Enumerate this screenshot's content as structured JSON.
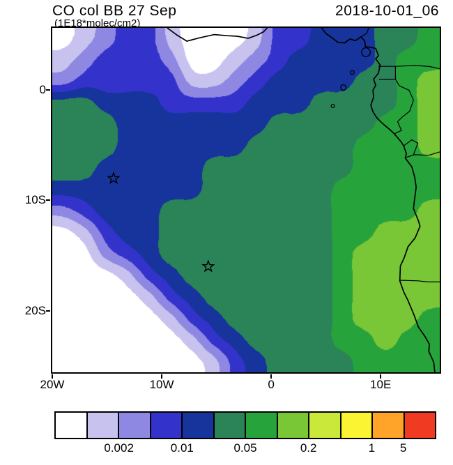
{
  "chart_data": {
    "type": "heatmap",
    "title": "CO col BB 27 Sep",
    "subtitle_units": "(1E18*molec/cm2)",
    "timestamp": "2018-10-01_06",
    "x_axis": {
      "ticks": [
        {
          "label": "20W",
          "lon": -20
        },
        {
          "label": "10W",
          "lon": -10
        },
        {
          "label": "0",
          "lon": 0
        },
        {
          "label": "10E",
          "lon": 10
        }
      ]
    },
    "y_axis": {
      "ticks": [
        {
          "label": "0",
          "lat": 0
        },
        {
          "label": "10S",
          "lat": -10
        },
        {
          "label": "20S",
          "lat": -20
        }
      ]
    },
    "lon_range": [
      -20,
      15.4
    ],
    "lat_range": [
      5.66,
      -25.6
    ],
    "levels": [
      0.001,
      0.002,
      0.005,
      0.01,
      0.02,
      0.05,
      0.1,
      0.2,
      0.5,
      1,
      5
    ],
    "palette": [
      "#ffffff",
      "#c8c2ee",
      "#8f88e3",
      "#3333cc",
      "#16349c",
      "#2b8458",
      "#27a33c",
      "#79c636",
      "#c9e83a",
      "#fbf432",
      "#ffa329",
      "#f03b22"
    ],
    "colorbar_labels": [
      {
        "text": "0.002",
        "boundary": 2
      },
      {
        "text": "0.01",
        "boundary": 4
      },
      {
        "text": "0.05",
        "boundary": 6
      },
      {
        "text": "0.2",
        "boundary": 8
      },
      {
        "text": "1",
        "boundary": 10
      },
      {
        "text": "5",
        "boundary": 11
      }
    ],
    "grid": {
      "ncols": 18,
      "nrows": 16,
      "values": [
        [
          0.0005,
          0.0015,
          0.003,
          0.007,
          0.007,
          0.0015,
          0.0005,
          0.0005,
          0.0005,
          0.0015,
          0.007,
          0.007,
          0.015,
          0.015,
          0.015,
          0.03,
          0.03,
          0.07
        ],
        [
          0.0015,
          0.003,
          0.007,
          0.007,
          0.007,
          0.003,
          0.0005,
          0.0005,
          0.0015,
          0.003,
          0.007,
          0.015,
          0.015,
          0.015,
          0.015,
          0.03,
          0.07,
          0.07
        ],
        [
          0.003,
          0.007,
          0.007,
          0.007,
          0.007,
          0.007,
          0.0015,
          0.0015,
          0.003,
          0.007,
          0.015,
          0.015,
          0.015,
          0.015,
          0.03,
          0.03,
          0.07,
          0.15
        ],
        [
          0.03,
          0.03,
          0.015,
          0.015,
          0.015,
          0.007,
          0.007,
          0.007,
          0.007,
          0.015,
          0.015,
          0.015,
          0.03,
          0.03,
          0.03,
          0.03,
          0.07,
          0.15
        ],
        [
          0.03,
          0.03,
          0.03,
          0.015,
          0.015,
          0.015,
          0.015,
          0.015,
          0.015,
          0.015,
          0.03,
          0.03,
          0.03,
          0.03,
          0.03,
          0.07,
          0.07,
          0.15
        ],
        [
          0.03,
          0.03,
          0.03,
          0.015,
          0.015,
          0.015,
          0.015,
          0.015,
          0.015,
          0.03,
          0.03,
          0.03,
          0.03,
          0.03,
          0.07,
          0.07,
          0.07,
          0.15
        ],
        [
          0.03,
          0.03,
          0.015,
          0.015,
          0.015,
          0.015,
          0.015,
          0.03,
          0.03,
          0.03,
          0.03,
          0.03,
          0.03,
          0.03,
          0.07,
          0.07,
          0.07,
          0.07
        ],
        [
          0.015,
          0.015,
          0.015,
          0.015,
          0.015,
          0.015,
          0.015,
          0.03,
          0.03,
          0.03,
          0.03,
          0.03,
          0.03,
          0.07,
          0.07,
          0.07,
          0.07,
          0.07
        ],
        [
          0.003,
          0.007,
          0.015,
          0.015,
          0.015,
          0.03,
          0.03,
          0.03,
          0.03,
          0.03,
          0.03,
          0.03,
          0.03,
          0.07,
          0.07,
          0.07,
          0.07,
          0.15
        ],
        [
          0.0005,
          0.0015,
          0.007,
          0.015,
          0.015,
          0.03,
          0.03,
          0.03,
          0.03,
          0.03,
          0.03,
          0.03,
          0.03,
          0.07,
          0.07,
          0.15,
          0.15,
          0.15
        ],
        [
          0.0005,
          0.0005,
          0.003,
          0.007,
          0.015,
          0.03,
          0.03,
          0.03,
          0.03,
          0.03,
          0.03,
          0.03,
          0.03,
          0.07,
          0.15,
          0.15,
          0.15,
          0.15
        ],
        [
          0.0005,
          0.0005,
          0.0005,
          0.0015,
          0.007,
          0.015,
          0.03,
          0.03,
          0.03,
          0.03,
          0.03,
          0.03,
          0.03,
          0.07,
          0.15,
          0.15,
          0.15,
          0.15
        ],
        [
          0.0005,
          0.0005,
          0.0005,
          0.0005,
          0.0015,
          0.007,
          0.015,
          0.03,
          0.03,
          0.03,
          0.03,
          0.03,
          0.03,
          0.07,
          0.15,
          0.15,
          0.15,
          0.15
        ],
        [
          0.0005,
          0.0005,
          0.0005,
          0.0005,
          0.0005,
          0.0015,
          0.007,
          0.015,
          0.03,
          0.03,
          0.03,
          0.03,
          0.03,
          0.07,
          0.15,
          0.15,
          0.15,
          0.07
        ],
        [
          0.0005,
          0.0005,
          0.0005,
          0.0005,
          0.0005,
          0.0005,
          0.0015,
          0.007,
          0.015,
          0.03,
          0.03,
          0.03,
          0.03,
          0.07,
          0.07,
          0.15,
          0.07,
          0.07
        ],
        [
          0.0005,
          0.0005,
          0.0005,
          0.0005,
          0.0005,
          0.0005,
          0.0005,
          0.0015,
          0.007,
          0.015,
          0.03,
          0.03,
          0.03,
          0.03,
          0.07,
          0.07,
          0.07,
          0.07
        ]
      ]
    },
    "markers": [
      {
        "lon": -14.4,
        "lat": -8.0
      },
      {
        "lon": -5.75,
        "lat": -16.0
      }
    ],
    "map": {
      "coastlines": [
        [
          [
            -9.5,
            5.66
          ],
          [
            -8.6,
            5.0
          ],
          [
            -7.7,
            4.45
          ],
          [
            -6.6,
            4.75
          ],
          [
            -5.2,
            5.05
          ],
          [
            -4.0,
            4.95
          ],
          [
            -3.1,
            4.9
          ],
          [
            -2.1,
            4.72
          ],
          [
            -1.3,
            5.0
          ],
          [
            -0.7,
            5.3
          ],
          [
            -0.35,
            5.66
          ]
        ],
        [
          [
            4.6,
            5.66
          ],
          [
            5.0,
            5.15
          ],
          [
            5.5,
            4.8
          ],
          [
            6.1,
            4.35
          ],
          [
            6.7,
            4.3
          ],
          [
            7.2,
            4.65
          ],
          [
            7.7,
            4.5
          ],
          [
            8.2,
            4.85
          ],
          [
            8.55,
            4.45
          ],
          [
            8.6,
            3.95
          ],
          [
            9.1,
            3.9
          ],
          [
            9.55,
            3.8
          ],
          [
            9.8,
            3.15
          ],
          [
            9.55,
            2.85
          ],
          [
            9.95,
            2.3
          ],
          [
            9.8,
            1.55
          ],
          [
            9.35,
            1.0
          ],
          [
            9.55,
            0.45
          ],
          [
            9.3,
            0.0
          ],
          [
            9.35,
            -0.65
          ],
          [
            9.1,
            -1.35
          ],
          [
            9.3,
            -1.95
          ],
          [
            9.65,
            -2.5
          ],
          [
            10.1,
            -2.95
          ],
          [
            10.75,
            -3.5
          ],
          [
            11.25,
            -3.95
          ],
          [
            11.85,
            -4.65
          ],
          [
            12.1,
            -5.05
          ],
          [
            12.35,
            -5.75
          ],
          [
            12.25,
            -6.15
          ],
          [
            12.85,
            -6.95
          ],
          [
            13.1,
            -7.85
          ],
          [
            13.25,
            -8.8
          ],
          [
            13.1,
            -9.85
          ],
          [
            13.0,
            -10.75
          ],
          [
            13.45,
            -11.85
          ],
          [
            13.6,
            -12.35
          ],
          [
            13.15,
            -13.4
          ],
          [
            12.5,
            -14.2
          ],
          [
            12.15,
            -15.2
          ],
          [
            11.8,
            -15.95
          ],
          [
            11.75,
            -17.3
          ],
          [
            12.1,
            -18.3
          ],
          [
            12.5,
            -19.1
          ],
          [
            13.05,
            -20.4
          ],
          [
            13.45,
            -21.5
          ],
          [
            14.05,
            -22.35
          ],
          [
            14.45,
            -23.05
          ],
          [
            14.4,
            -23.7
          ],
          [
            14.85,
            -24.7
          ],
          [
            14.95,
            -25.6
          ]
        ]
      ],
      "borders": [
        [
          [
            8.25,
            4.85
          ],
          [
            8.75,
            5.2
          ],
          [
            8.9,
            5.66
          ]
        ],
        [
          [
            9.8,
            2.17
          ],
          [
            11.35,
            2.17
          ],
          [
            11.35,
            1.0
          ],
          [
            9.85,
            1.0
          ]
        ],
        [
          [
            11.35,
            2.17
          ],
          [
            13.2,
            2.25
          ],
          [
            14.5,
            2.15
          ],
          [
            15.4,
            1.95
          ]
        ],
        [
          [
            11.35,
            1.0
          ],
          [
            11.7,
            0.4
          ],
          [
            12.6,
            0.0
          ],
          [
            13.0,
            -0.9
          ],
          [
            12.65,
            -1.9
          ],
          [
            11.95,
            -2.45
          ],
          [
            11.55,
            -2.85
          ],
          [
            11.9,
            -3.65
          ],
          [
            11.25,
            -3.95
          ]
        ],
        [
          [
            12.1,
            -5.05
          ],
          [
            12.85,
            -4.5
          ],
          [
            13.4,
            -4.8
          ],
          [
            13.0,
            -5.85
          ]
        ],
        [
          [
            12.3,
            -6.1
          ],
          [
            13.1,
            -5.85
          ],
          [
            14.4,
            -5.9
          ],
          [
            15.4,
            -5.6
          ]
        ],
        [
          [
            11.75,
            -17.25
          ],
          [
            13.4,
            -17.3
          ],
          [
            14.3,
            -17.4
          ],
          [
            15.4,
            -17.4
          ]
        ]
      ],
      "islands": [
        {
          "lon": 8.65,
          "lat": 3.45,
          "r": 0.4
        },
        {
          "lon": 7.4,
          "lat": 1.62,
          "r": 0.18
        },
        {
          "lon": 6.6,
          "lat": 0.25,
          "r": 0.25
        },
        {
          "lon": 5.63,
          "lat": -1.43,
          "r": 0.15
        }
      ]
    }
  }
}
